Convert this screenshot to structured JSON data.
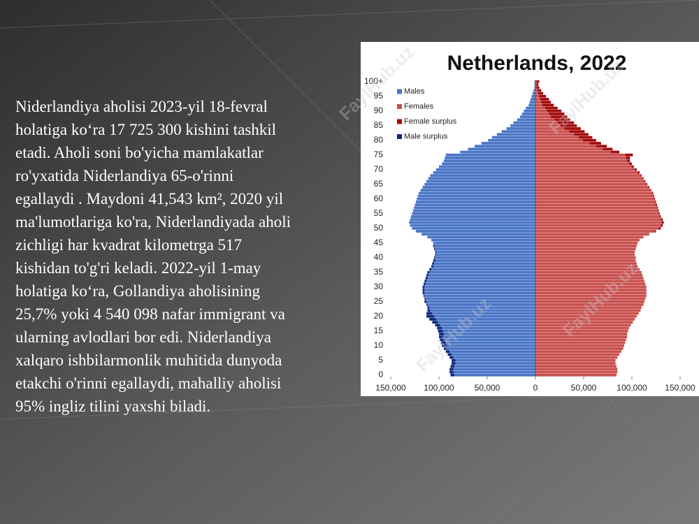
{
  "slide": {
    "lines": [
      "Niderlandiya aholisi 2023-yil 18-fevral",
      "holatiga ko‘ra 17 725 300 kishini tashkil",
      "etadi. Aholi soni bo'yicha mamlakatlar",
      "ro'yxatida Niderlandiya 65-o'rinni",
      "egallaydi . Maydoni 41,543 km², 2020 yil",
      "ma'lumotlariga ko'ra, Niderlandiyada aholi",
      "zichligi har kvadrat kilometrga 517",
      "kishidan to'g'ri keladi. 2022-yil 1-may",
      "holatiga ko‘ra, Gollandiya aholisining",
      "25,7% yoki 4 540 098 nafar immigrant va",
      "ularning avlodlari bor edi. Niderlandiya",
      "xalqaro ishbilarmonlik muhitida dunyoda",
      "etakchi o'rinni egallaydi, mahalliy aholisi",
      "95% ingliz tilini yaxshi biladi."
    ]
  },
  "chart_data": {
    "type": "pyramid",
    "title": "Netherlands, 2022",
    "watermark": "FaylHub.uz",
    "categories": [
      "0",
      null,
      null,
      null,
      null,
      "5",
      null,
      null,
      null,
      null,
      "10",
      null,
      null,
      null,
      null,
      "15",
      null,
      null,
      null,
      null,
      "20",
      null,
      null,
      null,
      null,
      "25",
      null,
      null,
      null,
      null,
      "30",
      null,
      null,
      null,
      null,
      "35",
      null,
      null,
      null,
      null,
      "40",
      null,
      null,
      null,
      null,
      "45",
      null,
      null,
      null,
      null,
      "50",
      null,
      null,
      null,
      null,
      "55",
      null,
      null,
      null,
      null,
      "60",
      null,
      null,
      null,
      null,
      "65",
      null,
      null,
      null,
      null,
      "70",
      null,
      null,
      null,
      null,
      "75",
      null,
      null,
      null,
      null,
      "80",
      null,
      null,
      null,
      null,
      "85",
      null,
      null,
      null,
      null,
      "90",
      null,
      null,
      null,
      null,
      "95",
      null,
      null,
      null,
      null,
      "100+"
    ],
    "series": [
      {
        "name": "Males",
        "color": "#4a76c6",
        "values": [
          84000,
          85000,
          85000,
          84000,
          83000,
          83000,
          85000,
          87000,
          89000,
          91000,
          92000,
          93000,
          94000,
          95000,
          95000,
          96000,
          97000,
          99000,
          101000,
          103000,
          105000,
          107000,
          109000,
          110000,
          112000,
          113000,
          114000,
          115000,
          115000,
          115000,
          115000,
          114000,
          113000,
          112000,
          111000,
          110000,
          108000,
          106000,
          105000,
          104000,
          104000,
          103000,
          103000,
          104000,
          105000,
          106000,
          108000,
          112000,
          118000,
          124000,
          128000,
          130000,
          131000,
          130000,
          129000,
          128000,
          127000,
          126000,
          125000,
          124000,
          123000,
          122000,
          121000,
          119000,
          117000,
          115000,
          113000,
          111000,
          109000,
          106000,
          103000,
          100000,
          97000,
          95000,
          94000,
          93000,
          78000,
          70000,
          63000,
          56000,
          49000,
          45000,
          40000,
          35000,
          30000,
          26000,
          23000,
          19000,
          16000,
          14000,
          12000,
          10000,
          7000,
          6000,
          5000,
          4000,
          3000,
          2000,
          1000,
          1000,
          1000
        ]
      },
      {
        "name": "Females",
        "color": "#c9504e",
        "values": [
          84000,
          85000,
          85000,
          84000,
          83000,
          83000,
          85000,
          87000,
          89000,
          91000,
          92000,
          93000,
          94000,
          95000,
          95000,
          96000,
          97000,
          99000,
          101000,
          103000,
          105000,
          107000,
          109000,
          110000,
          112000,
          113000,
          114000,
          115000,
          115000,
          115000,
          115000,
          114000,
          113000,
          112000,
          111000,
          110000,
          108000,
          106000,
          105000,
          104000,
          104000,
          103000,
          103000,
          104000,
          105000,
          106000,
          108000,
          112000,
          118000,
          124000,
          128000,
          130000,
          131000,
          130000,
          129000,
          128000,
          127000,
          126000,
          125000,
          124000,
          123000,
          122000,
          121000,
          119000,
          117000,
          115000,
          113000,
          111000,
          109000,
          106000,
          103000,
          100000,
          97000,
          95000,
          94000,
          93000,
          78000,
          70000,
          63000,
          56000,
          49000,
          45000,
          40000,
          35000,
          30000,
          26000,
          23000,
          19000,
          16000,
          14000,
          12000,
          10000,
          7000,
          6000,
          5000,
          4000,
          3000,
          2000,
          1000,
          1000,
          1000
        ]
      },
      {
        "name": "Female surplus",
        "color": "#a30d0d",
        "values": [
          0,
          0,
          0,
          0,
          0,
          0,
          0,
          0,
          0,
          0,
          0,
          0,
          0,
          0,
          0,
          0,
          0,
          0,
          0,
          0,
          0,
          0,
          0,
          0,
          0,
          0,
          0,
          0,
          0,
          0,
          0,
          0,
          0,
          0,
          0,
          0,
          0,
          0,
          0,
          0,
          0,
          0,
          0,
          0,
          0,
          0,
          0,
          0,
          0,
          1000,
          2000,
          2000,
          2000,
          2000,
          1000,
          1000,
          1000,
          1000,
          1000,
          1000,
          1000,
          1000,
          1000,
          1000,
          1000,
          1000,
          1000,
          1000,
          1000,
          2000,
          2000,
          2000,
          3000,
          3000,
          4000,
          8000,
          9000,
          10000,
          11000,
          12000,
          14000,
          14000,
          15000,
          16000,
          17000,
          17000,
          17000,
          17000,
          17000,
          16000,
          15000,
          13000,
          12000,
          10000,
          9000,
          7000,
          5000,
          4000,
          3000,
          2000,
          3000
        ]
      },
      {
        "name": "Male surplus",
        "color": "#0c2a7e",
        "values": [
          4000,
          4000,
          4000,
          4000,
          4000,
          4000,
          4000,
          4000,
          4000,
          4000,
          5000,
          5000,
          5000,
          5000,
          5000,
          5000,
          5000,
          5000,
          6000,
          7000,
          8000,
          6000,
          3000,
          2000,
          1000,
          2000,
          1000,
          1000,
          2000,
          2000,
          2000,
          2000,
          2000,
          2000,
          2000,
          2000,
          2000,
          2000,
          2000,
          2000,
          1000,
          1000,
          1000,
          1000,
          1000,
          0,
          0,
          0,
          0,
          0,
          0,
          0,
          0,
          0,
          0,
          0,
          0,
          0,
          0,
          0,
          0,
          0,
          0,
          0,
          0,
          0,
          0,
          0,
          0,
          0,
          0,
          0,
          0,
          0,
          0,
          0,
          0,
          0,
          0,
          0,
          0,
          0,
          0,
          0,
          0,
          0,
          0,
          0,
          0,
          0,
          0,
          0,
          0,
          0,
          0,
          0,
          0,
          0,
          0,
          0,
          0
        ]
      }
    ],
    "xlim": [
      -150000,
      150000
    ],
    "xticks": [
      {
        "value": -150000,
        "label": "150,000"
      },
      {
        "value": -100000,
        "label": "100,000"
      },
      {
        "value": -50000,
        "label": "50,000"
      },
      0,
      {
        "value": 50000,
        "label": "50,000"
      },
      {
        "value": 100000,
        "label": "100,000"
      },
      {
        "value": 150000,
        "label": "150,000"
      }
    ],
    "legend": "upper left"
  }
}
